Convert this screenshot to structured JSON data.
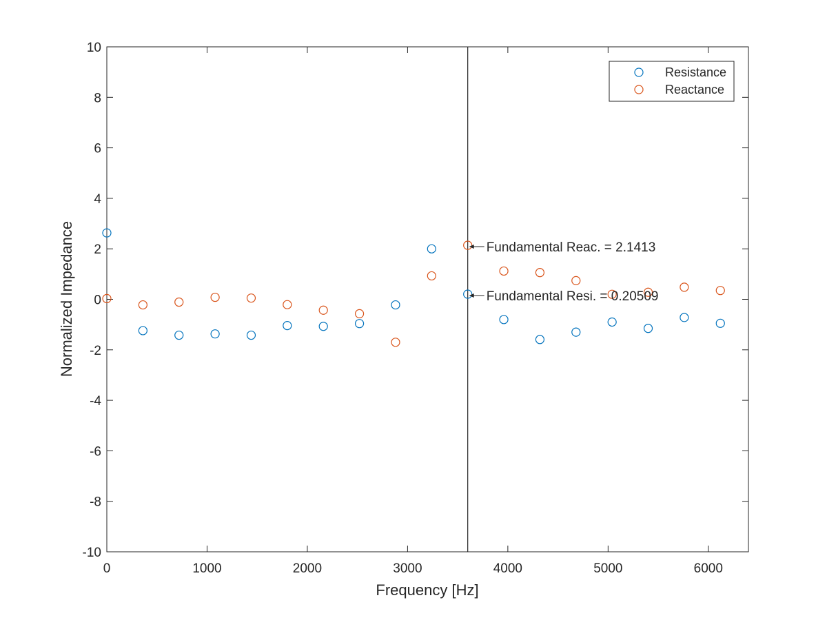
{
  "chart_data": {
    "type": "scatter",
    "xlabel": "Frequency [Hz]",
    "ylabel": "Normalized Impedance",
    "xlim": [
      0,
      6400
    ],
    "ylim": [
      -10,
      10
    ],
    "xticks": [
      0,
      1000,
      2000,
      3000,
      4000,
      5000,
      6000
    ],
    "xtick_labels": [
      "0",
      "1000",
      "2000",
      "3000",
      "4000",
      "5000",
      "6000"
    ],
    "yticks": [
      -10,
      -8,
      -6,
      -4,
      -2,
      0,
      2,
      4,
      6,
      8,
      10
    ],
    "ytick_labels": [
      "-10",
      "-8",
      "-6",
      "-4",
      "-2",
      "0",
      "2",
      "4",
      "6",
      "8",
      "10"
    ],
    "grid": false,
    "legend_position": "top-right",
    "vertical_line_x": 3600,
    "x": [
      0,
      360,
      720,
      1080,
      1440,
      1800,
      2160,
      2520,
      2880,
      3240,
      3600,
      3960,
      4320,
      4680,
      5040,
      5400,
      5760,
      6120
    ],
    "series": [
      {
        "name": "Resistance",
        "color": "#0072BD",
        "marker": "circle",
        "values": [
          2.63,
          -1.24,
          -1.42,
          -1.37,
          -1.42,
          -1.04,
          -1.07,
          -0.96,
          -0.22,
          2.0,
          0.205,
          -0.8,
          -1.59,
          -1.3,
          -0.9,
          -1.15,
          -0.72,
          -0.95
        ]
      },
      {
        "name": "Reactance",
        "color": "#D95319",
        "marker": "circle",
        "values": [
          0.03,
          -0.22,
          -0.11,
          0.08,
          0.05,
          -0.21,
          -0.43,
          -0.57,
          -1.7,
          0.93,
          2.141,
          1.12,
          1.06,
          0.74,
          0.2,
          0.28,
          0.48,
          0.35
        ]
      }
    ],
    "annotations": [
      {
        "text": "Fundamental Reac. = 2.1413",
        "x": 3600,
        "y": 2.1413
      },
      {
        "text": "Fundamental Resi. = 0.20509",
        "x": 3600,
        "y": 0.20509
      }
    ]
  }
}
